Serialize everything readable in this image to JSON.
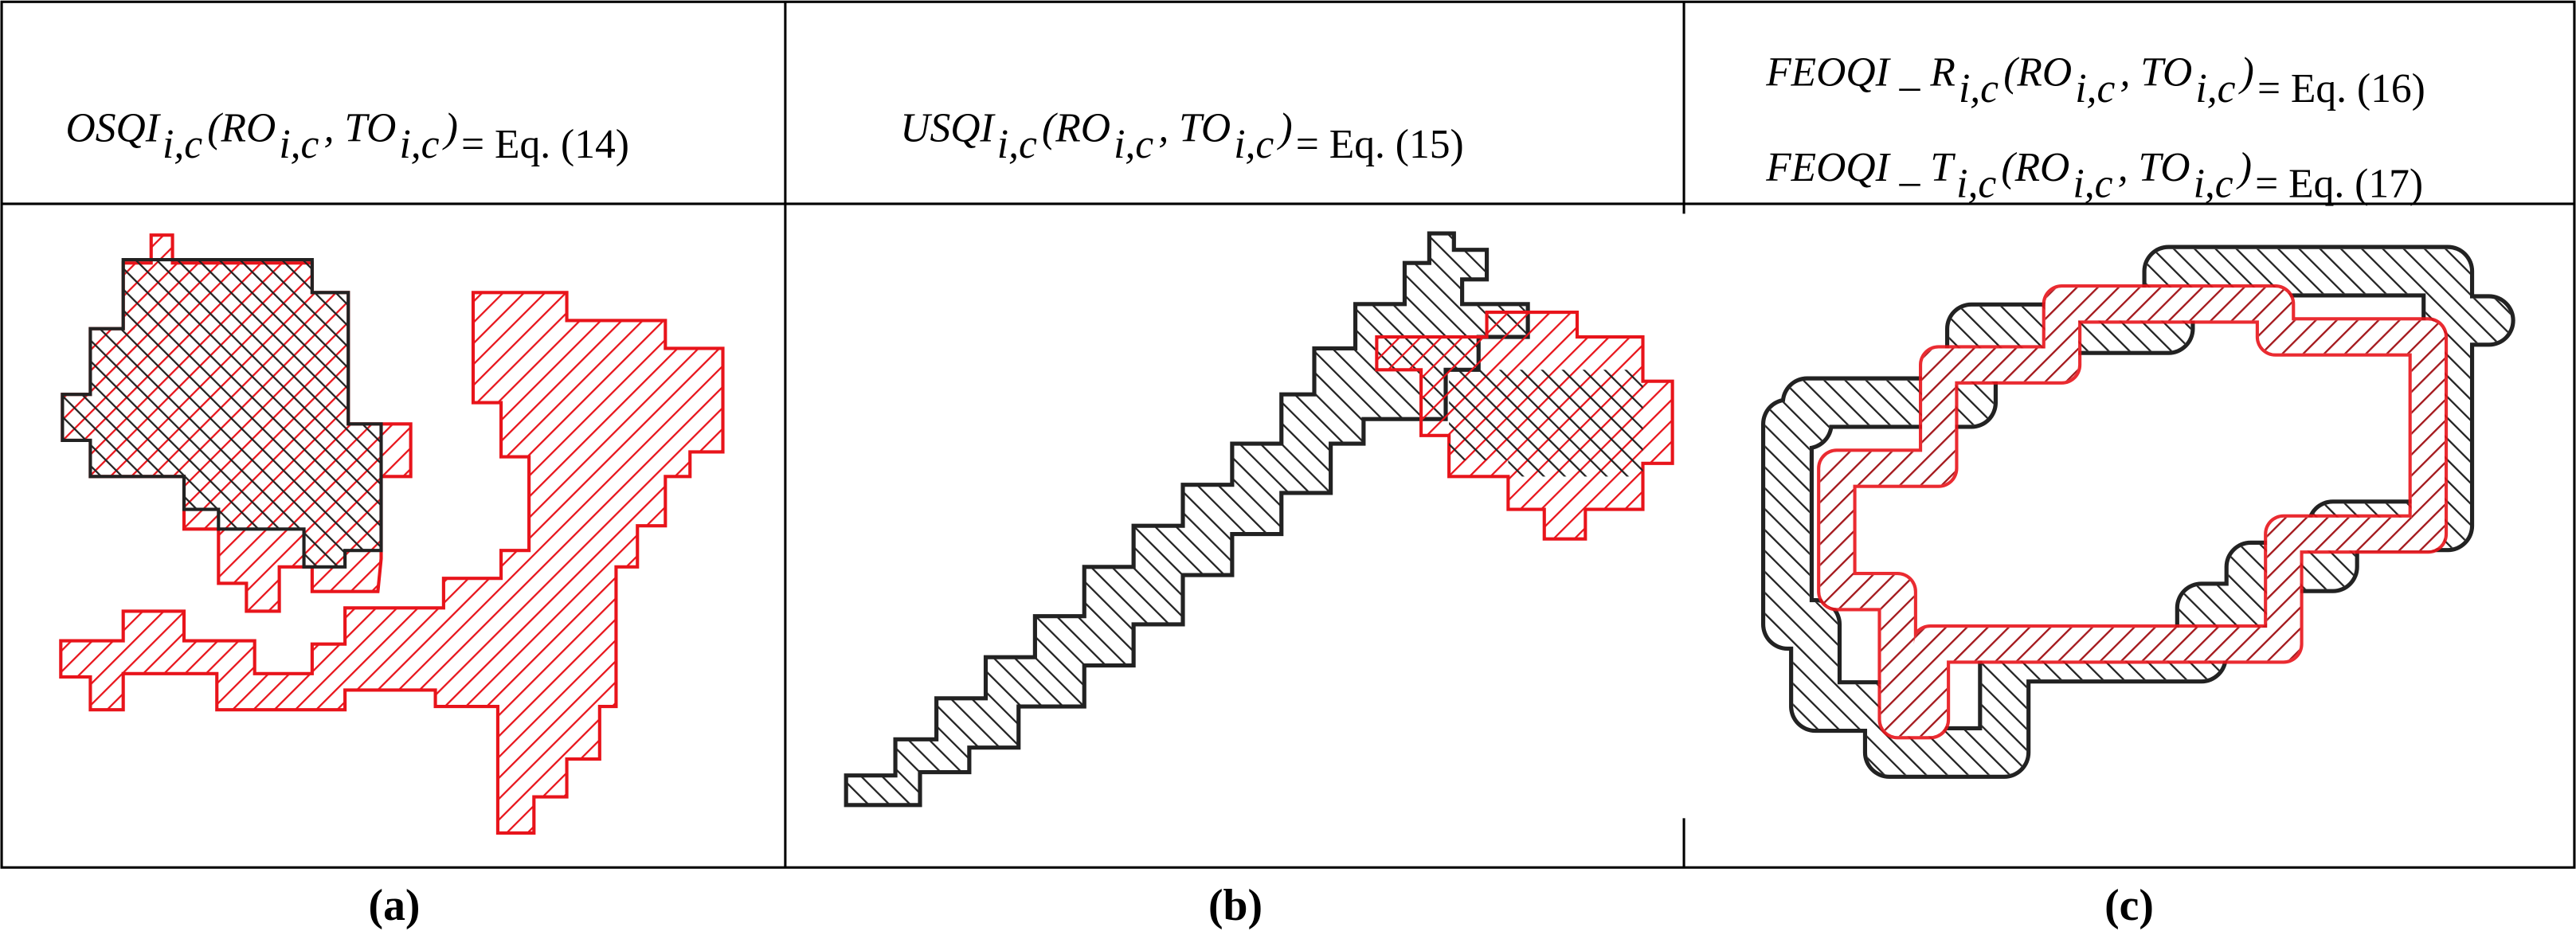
{
  "panels": [
    {
      "caption": "(a)",
      "formulas": [
        {
          "parts": [
            "OSQI",
            "i,c",
            "(RO",
            "i,c",
            ", TO",
            "i,c",
            ")"
          ],
          "eq": "= Eq. (14)"
        }
      ]
    },
    {
      "caption": "(b)",
      "formulas": [
        {
          "parts": [
            "USQI",
            "i,c",
            "(RO",
            "i,c",
            ", TO",
            "i,c",
            ")"
          ],
          "eq": "= Eq. (15)"
        }
      ]
    },
    {
      "caption": "(c)",
      "formulas": [
        {
          "parts": [
            "FEOQI _ R",
            "i,c",
            "(RO",
            "i,c",
            ", TO",
            "i,c",
            ")"
          ],
          "eq": "= Eq. (16)"
        },
        {
          "parts": [
            "FEOQI _ T",
            "i,c",
            "(RO",
            "i,c",
            ", TO",
            "i,c",
            ")"
          ],
          "eq": "= Eq. (17)"
        }
      ]
    }
  ]
}
